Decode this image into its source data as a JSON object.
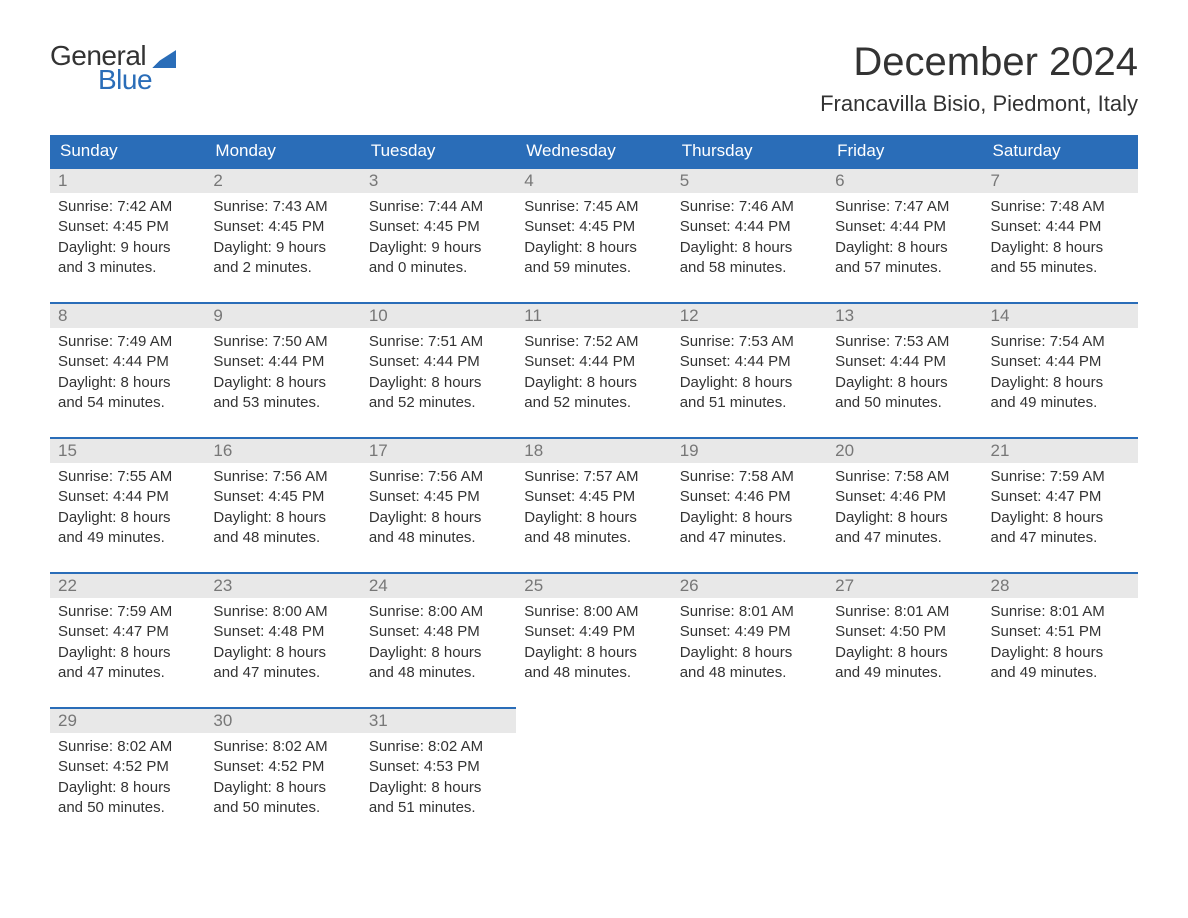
{
  "logo": {
    "top": "General",
    "bottom": "Blue"
  },
  "title": "December 2024",
  "location": "Francavilla Bisio, Piedmont, Italy",
  "calendar": {
    "type": "table",
    "background_color": "#ffffff",
    "header_bg": "#2a6db8",
    "header_fg": "#ffffff",
    "daynum_bg": "#e8e8e8",
    "daynum_fg": "#777777",
    "border_color": "#2a6db8",
    "text_color": "#333333",
    "font_size_header": 17,
    "font_size_daynum": 17,
    "font_size_detail": 15,
    "columns": [
      "Sunday",
      "Monday",
      "Tuesday",
      "Wednesday",
      "Thursday",
      "Friday",
      "Saturday"
    ],
    "weeks": [
      [
        {
          "n": "1",
          "sr": "Sunrise: 7:42 AM",
          "ss": "Sunset: 4:45 PM",
          "d1": "Daylight: 9 hours",
          "d2": "and 3 minutes."
        },
        {
          "n": "2",
          "sr": "Sunrise: 7:43 AM",
          "ss": "Sunset: 4:45 PM",
          "d1": "Daylight: 9 hours",
          "d2": "and 2 minutes."
        },
        {
          "n": "3",
          "sr": "Sunrise: 7:44 AM",
          "ss": "Sunset: 4:45 PM",
          "d1": "Daylight: 9 hours",
          "d2": "and 0 minutes."
        },
        {
          "n": "4",
          "sr": "Sunrise: 7:45 AM",
          "ss": "Sunset: 4:45 PM",
          "d1": "Daylight: 8 hours",
          "d2": "and 59 minutes."
        },
        {
          "n": "5",
          "sr": "Sunrise: 7:46 AM",
          "ss": "Sunset: 4:44 PM",
          "d1": "Daylight: 8 hours",
          "d2": "and 58 minutes."
        },
        {
          "n": "6",
          "sr": "Sunrise: 7:47 AM",
          "ss": "Sunset: 4:44 PM",
          "d1": "Daylight: 8 hours",
          "d2": "and 57 minutes."
        },
        {
          "n": "7",
          "sr": "Sunrise: 7:48 AM",
          "ss": "Sunset: 4:44 PM",
          "d1": "Daylight: 8 hours",
          "d2": "and 55 minutes."
        }
      ],
      [
        {
          "n": "8",
          "sr": "Sunrise: 7:49 AM",
          "ss": "Sunset: 4:44 PM",
          "d1": "Daylight: 8 hours",
          "d2": "and 54 minutes."
        },
        {
          "n": "9",
          "sr": "Sunrise: 7:50 AM",
          "ss": "Sunset: 4:44 PM",
          "d1": "Daylight: 8 hours",
          "d2": "and 53 minutes."
        },
        {
          "n": "10",
          "sr": "Sunrise: 7:51 AM",
          "ss": "Sunset: 4:44 PM",
          "d1": "Daylight: 8 hours",
          "d2": "and 52 minutes."
        },
        {
          "n": "11",
          "sr": "Sunrise: 7:52 AM",
          "ss": "Sunset: 4:44 PM",
          "d1": "Daylight: 8 hours",
          "d2": "and 52 minutes."
        },
        {
          "n": "12",
          "sr": "Sunrise: 7:53 AM",
          "ss": "Sunset: 4:44 PM",
          "d1": "Daylight: 8 hours",
          "d2": "and 51 minutes."
        },
        {
          "n": "13",
          "sr": "Sunrise: 7:53 AM",
          "ss": "Sunset: 4:44 PM",
          "d1": "Daylight: 8 hours",
          "d2": "and 50 minutes."
        },
        {
          "n": "14",
          "sr": "Sunrise: 7:54 AM",
          "ss": "Sunset: 4:44 PM",
          "d1": "Daylight: 8 hours",
          "d2": "and 49 minutes."
        }
      ],
      [
        {
          "n": "15",
          "sr": "Sunrise: 7:55 AM",
          "ss": "Sunset: 4:44 PM",
          "d1": "Daylight: 8 hours",
          "d2": "and 49 minutes."
        },
        {
          "n": "16",
          "sr": "Sunrise: 7:56 AM",
          "ss": "Sunset: 4:45 PM",
          "d1": "Daylight: 8 hours",
          "d2": "and 48 minutes."
        },
        {
          "n": "17",
          "sr": "Sunrise: 7:56 AM",
          "ss": "Sunset: 4:45 PM",
          "d1": "Daylight: 8 hours",
          "d2": "and 48 minutes."
        },
        {
          "n": "18",
          "sr": "Sunrise: 7:57 AM",
          "ss": "Sunset: 4:45 PM",
          "d1": "Daylight: 8 hours",
          "d2": "and 48 minutes."
        },
        {
          "n": "19",
          "sr": "Sunrise: 7:58 AM",
          "ss": "Sunset: 4:46 PM",
          "d1": "Daylight: 8 hours",
          "d2": "and 47 minutes."
        },
        {
          "n": "20",
          "sr": "Sunrise: 7:58 AM",
          "ss": "Sunset: 4:46 PM",
          "d1": "Daylight: 8 hours",
          "d2": "and 47 minutes."
        },
        {
          "n": "21",
          "sr": "Sunrise: 7:59 AM",
          "ss": "Sunset: 4:47 PM",
          "d1": "Daylight: 8 hours",
          "d2": "and 47 minutes."
        }
      ],
      [
        {
          "n": "22",
          "sr": "Sunrise: 7:59 AM",
          "ss": "Sunset: 4:47 PM",
          "d1": "Daylight: 8 hours",
          "d2": "and 47 minutes."
        },
        {
          "n": "23",
          "sr": "Sunrise: 8:00 AM",
          "ss": "Sunset: 4:48 PM",
          "d1": "Daylight: 8 hours",
          "d2": "and 47 minutes."
        },
        {
          "n": "24",
          "sr": "Sunrise: 8:00 AM",
          "ss": "Sunset: 4:48 PM",
          "d1": "Daylight: 8 hours",
          "d2": "and 48 minutes."
        },
        {
          "n": "25",
          "sr": "Sunrise: 8:00 AM",
          "ss": "Sunset: 4:49 PM",
          "d1": "Daylight: 8 hours",
          "d2": "and 48 minutes."
        },
        {
          "n": "26",
          "sr": "Sunrise: 8:01 AM",
          "ss": "Sunset: 4:49 PM",
          "d1": "Daylight: 8 hours",
          "d2": "and 48 minutes."
        },
        {
          "n": "27",
          "sr": "Sunrise: 8:01 AM",
          "ss": "Sunset: 4:50 PM",
          "d1": "Daylight: 8 hours",
          "d2": "and 49 minutes."
        },
        {
          "n": "28",
          "sr": "Sunrise: 8:01 AM",
          "ss": "Sunset: 4:51 PM",
          "d1": "Daylight: 8 hours",
          "d2": "and 49 minutes."
        }
      ],
      [
        {
          "n": "29",
          "sr": "Sunrise: 8:02 AM",
          "ss": "Sunset: 4:52 PM",
          "d1": "Daylight: 8 hours",
          "d2": "and 50 minutes."
        },
        {
          "n": "30",
          "sr": "Sunrise: 8:02 AM",
          "ss": "Sunset: 4:52 PM",
          "d1": "Daylight: 8 hours",
          "d2": "and 50 minutes."
        },
        {
          "n": "31",
          "sr": "Sunrise: 8:02 AM",
          "ss": "Sunset: 4:53 PM",
          "d1": "Daylight: 8 hours",
          "d2": "and 51 minutes."
        },
        null,
        null,
        null,
        null
      ]
    ]
  }
}
